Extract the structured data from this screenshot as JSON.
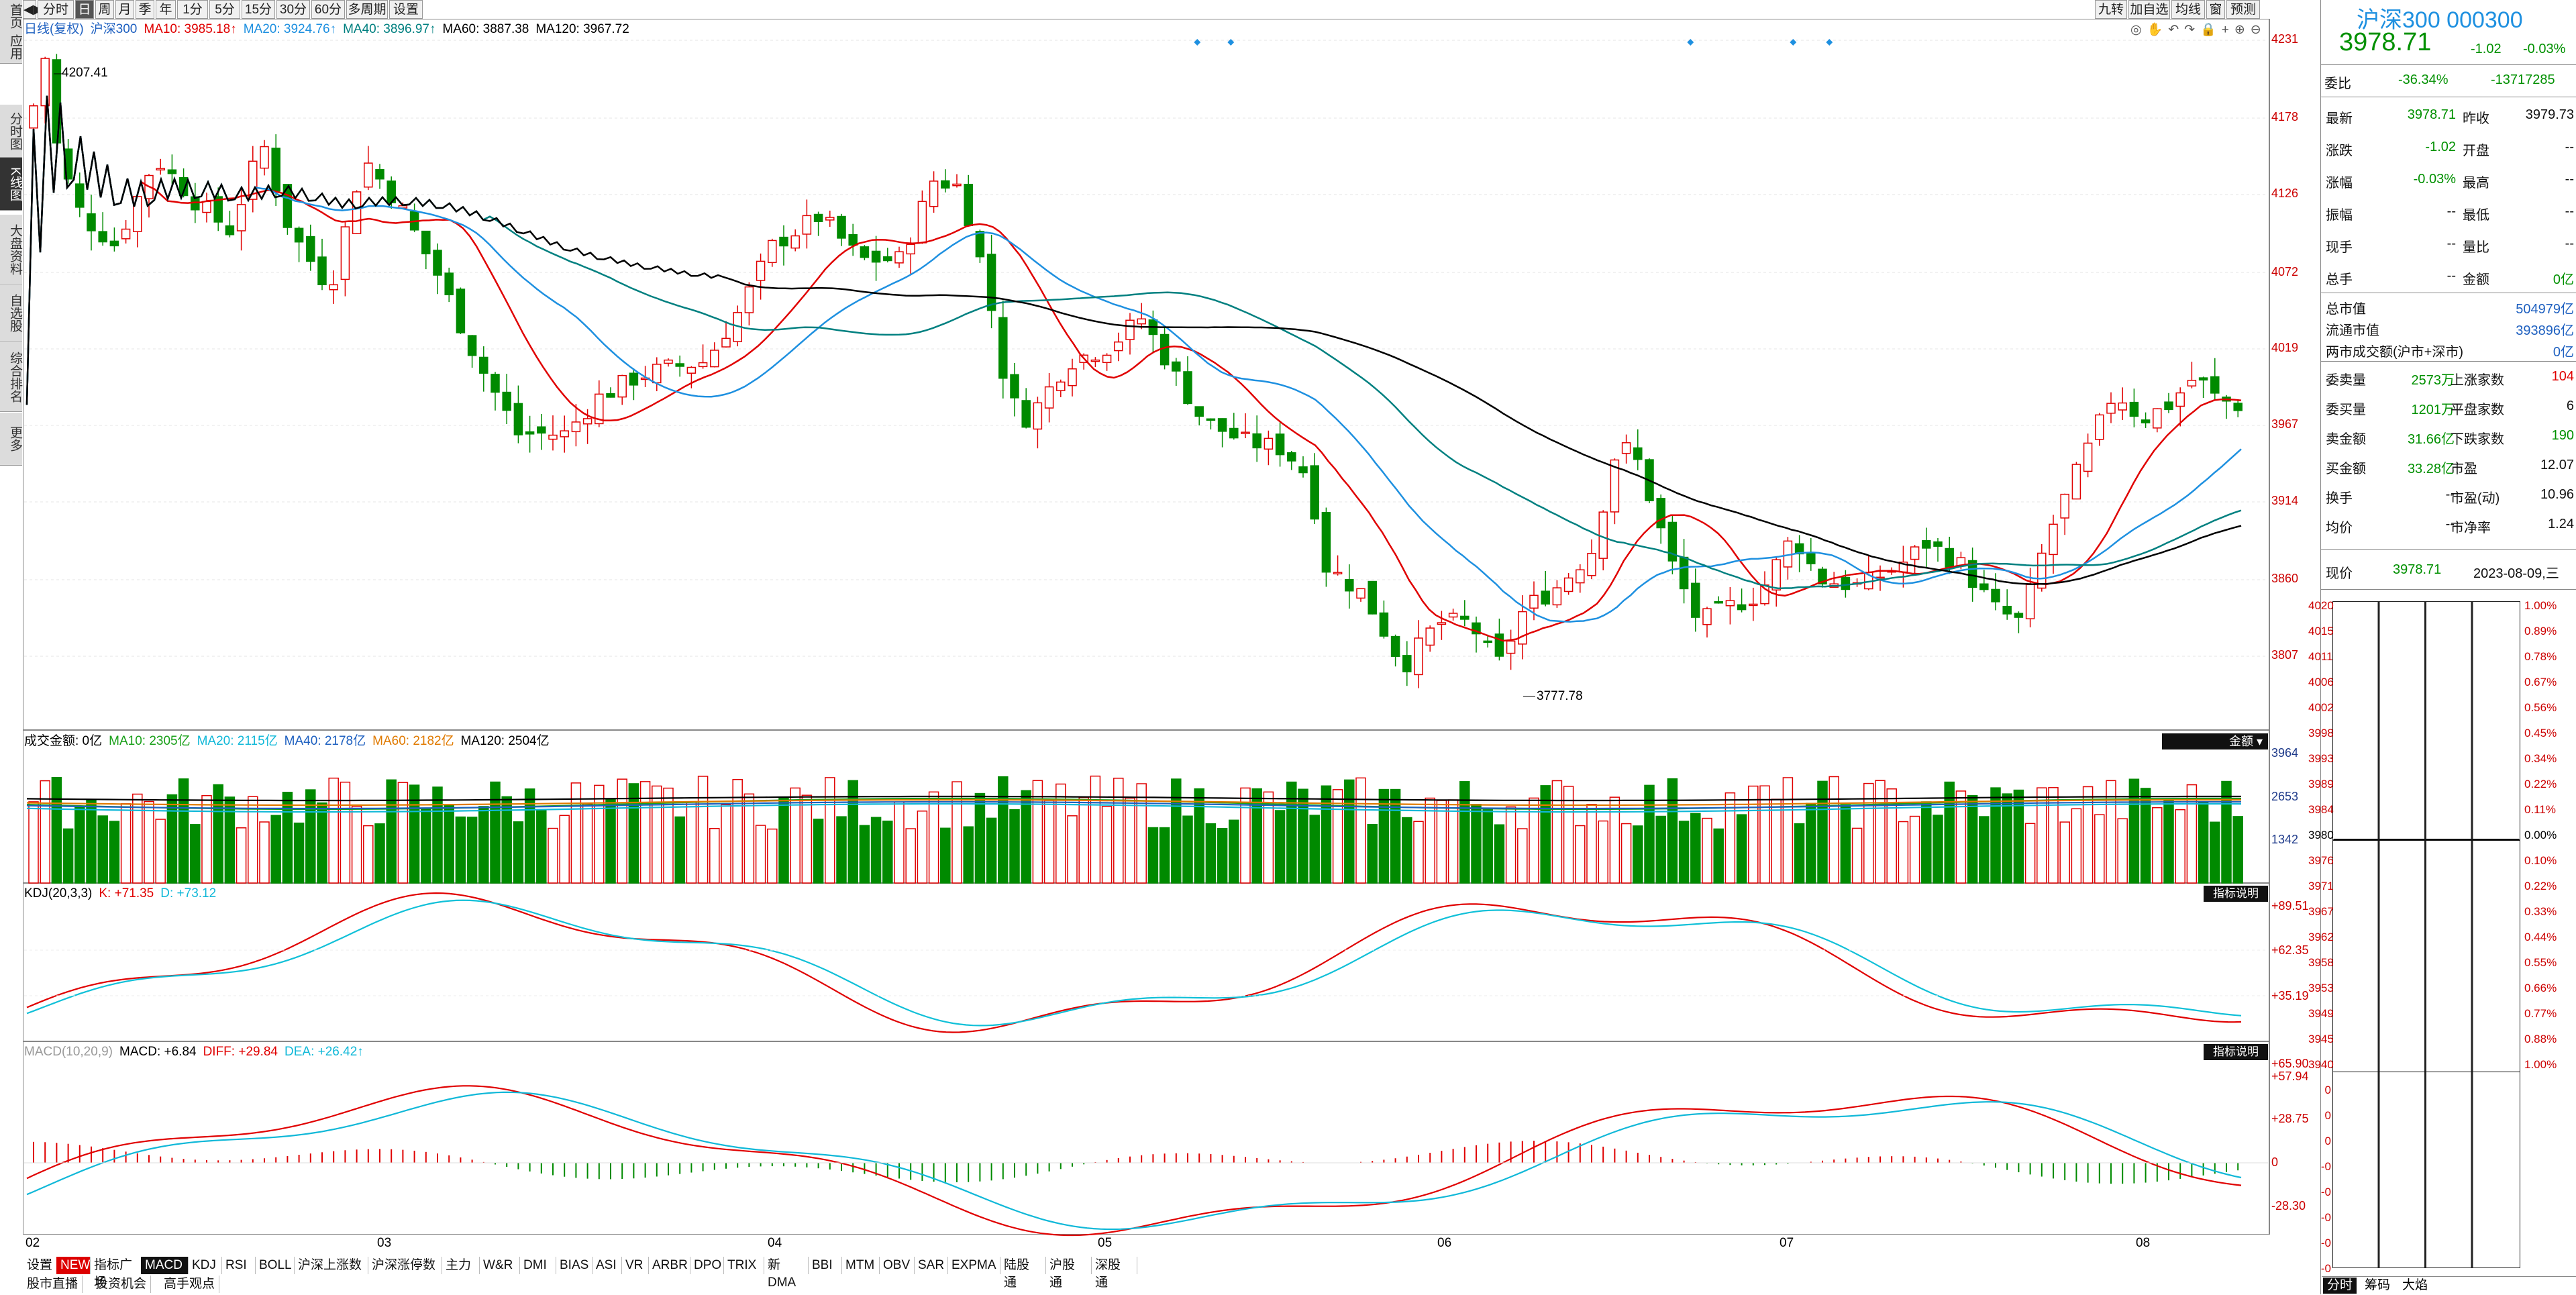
{
  "left_nav": [
    "首页",
    "应用",
    "分时图",
    "K线图",
    "大盘资料",
    "自选股",
    "综合排名",
    "更多"
  ],
  "top_toolbar": [
    "分时",
    "日",
    "周",
    "月",
    "季",
    "年",
    "1分",
    "5分",
    "15分",
    "30分",
    "60分",
    "多周期",
    "设置"
  ],
  "top_toolbar_right": [
    "九转",
    "加自选",
    "均线",
    "窗",
    "预测"
  ],
  "kline_legend": {
    "type": "日线(复权)",
    "name": "沪深300",
    "ma10": "MA10: 3985.18↑",
    "ma20": "MA20: 3924.76↑",
    "ma40": "MA40: 3896.97↑",
    "ma60": "MA60: 3887.38",
    "ma120": "MA120: 3967.72"
  },
  "kline_yaxis": [
    "4231",
    "4178",
    "4126",
    "4072",
    "4019",
    "3967",
    "3914",
    "3860",
    "3807"
  ],
  "kline_annotations": {
    "high": "4207.41",
    "low": "3777.78"
  },
  "volume_legend": {
    "label": "成交金额: 0亿",
    "ma10": "MA10: 2305亿",
    "ma20": "MA20: 2115亿",
    "ma40": "MA40: 2178亿",
    "ma60": "MA60: 2182亿",
    "ma120": "MA120: 2504亿",
    "button": "金额"
  },
  "volume_yaxis": [
    "3964",
    "2653",
    "1342"
  ],
  "kdj_legend": {
    "label": "KDJ(20,3,3)",
    "k": "K: +71.35",
    "d": "D: +73.12",
    "button": "指标说明"
  },
  "kdj_yaxis": [
    "+89.51",
    "+62.35",
    "+35.19"
  ],
  "macd_legend": {
    "label": "MACD(10,20,9)",
    "macd": "MACD: +6.84",
    "diff": "DIFF: +29.84",
    "dea": "DEA: +26.42↑",
    "button": "指标说明"
  },
  "macd_yaxis": [
    "+65.90",
    "+57.94",
    "+28.75",
    "0",
    "-28.30"
  ],
  "x_axis": [
    "02",
    "03",
    "04",
    "05",
    "06",
    "07",
    "08"
  ],
  "bottom_tabs": [
    "设置",
    "NEW",
    "指标广场",
    "MACD",
    "KDJ",
    "RSI",
    "BOLL",
    "沪深上涨数",
    "沪深涨停数",
    "主力",
    "W&R",
    "DMI",
    "BIAS",
    "ASI",
    "VR",
    "ARBR",
    "DPO",
    "TRIX",
    "新DMA",
    "BBI",
    "MTM",
    "OBV",
    "SAR",
    "EXPMA",
    "陆股通",
    "沪股通",
    "深股通"
  ],
  "bottom_tabs2": [
    "股市直播",
    "投资机会",
    "高手观点"
  ],
  "quote": {
    "title": "沪深300 000300",
    "price": "3978.71",
    "change": "-1.02",
    "change_pct": "-0.03%",
    "weibi_label": "委比",
    "weibi": "-36.34%",
    "weicha": "-13717285",
    "rows_left": [
      [
        "最新",
        "3978.71"
      ],
      [
        "涨跌",
        "-1.02"
      ],
      [
        "涨幅",
        "-0.03%"
      ],
      [
        "振幅",
        "--"
      ],
      [
        "现手",
        "--"
      ],
      [
        "总手",
        "--"
      ]
    ],
    "rows_right": [
      [
        "昨收",
        "3979.73"
      ],
      [
        "开盘",
        "--"
      ],
      [
        "最高",
        "--"
      ],
      [
        "最低",
        "--"
      ],
      [
        "量比",
        "--"
      ],
      [
        "金额",
        "0亿"
      ]
    ],
    "mktcap": [
      [
        "总市值",
        "504979亿"
      ],
      [
        "流通市值",
        "393896亿"
      ],
      [
        "两市成交额(沪市+深市)",
        "0亿"
      ]
    ],
    "breadth_left": [
      [
        "委卖量",
        "2573万"
      ],
      [
        "委买量",
        "1201万"
      ],
      [
        "卖金额",
        "31.66亿"
      ],
      [
        "买金额",
        "33.28亿"
      ],
      [
        "换手",
        "--"
      ],
      [
        "均价",
        "--"
      ]
    ],
    "breadth_right": [
      [
        "上涨家数",
        "104"
      ],
      [
        "平盘家数",
        "6"
      ],
      [
        "下跌家数",
        "190"
      ],
      [
        "市盈",
        "12.07"
      ],
      [
        "市盈(动)",
        "10.96"
      ],
      [
        "市净率",
        "1.24"
      ]
    ],
    "current_label": "现价",
    "current": "3978.71",
    "date": "2023-08-09,三"
  },
  "mini_chart": {
    "prices": [
      "4020",
      "4015",
      "4011",
      "4006",
      "4002",
      "3998",
      "3993",
      "3989",
      "3984",
      "3980",
      "3976",
      "3971",
      "3967",
      "3962",
      "3958",
      "3953",
      "3949",
      "3945",
      "3940",
      "0",
      "0",
      "0",
      "-0",
      "-0",
      "-0",
      "-0",
      "-0"
    ],
    "pcts": [
      "1.00%",
      "0.89%",
      "0.78%",
      "0.67%",
      "0.56%",
      "0.45%",
      "0.34%",
      "0.22%",
      "0.11%",
      "0.00%",
      "0.10%",
      "0.22%",
      "0.33%",
      "0.44%",
      "0.55%",
      "0.66%",
      "0.77%",
      "0.88%",
      "1.00%"
    ],
    "tabs": [
      "分时",
      "筹码",
      "大焰"
    ]
  },
  "colors": {
    "up": "#e00000",
    "down": "#008a00",
    "ma10": "#e00000",
    "ma20": "#1e90e0",
    "ma40": "#008080",
    "ma60": "#000000",
    "ma120": "#000000",
    "kdj_k": "#e00000",
    "kdj_d": "#10c0d8"
  }
}
